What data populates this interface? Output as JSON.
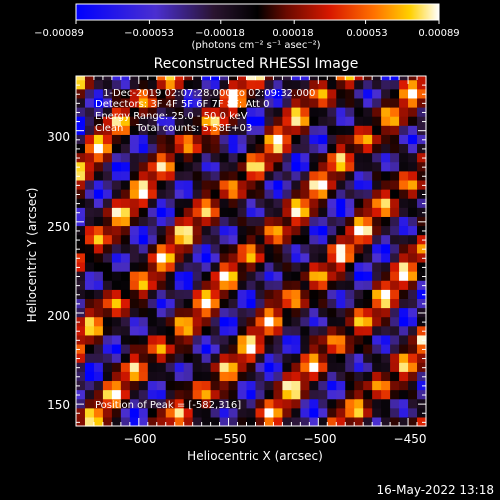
{
  "chart_data": {
    "type": "heatmap",
    "title": "Reconstructed RHESSI Image",
    "xlabel": "Heliocentric X (arcsec)",
    "ylabel": "Heliocentric Y (arcsec)",
    "xlim": [
      -635,
      -440
    ],
    "ylim": [
      138,
      330
    ],
    "x_ticks": [
      -600,
      -550,
      -500,
      -450
    ],
    "x_tick_labels": [
      "−600",
      "−550",
      "−500",
      "−450"
    ],
    "y_ticks": [
      150,
      200,
      250,
      300
    ],
    "y_tick_labels": [
      "150",
      "200",
      "250",
      "300"
    ],
    "colorbar": {
      "range": [
        -0.00089,
        0.00089
      ],
      "ticks": [
        -0.00089,
        -0.00053,
        -0.00018,
        0.00018,
        0.00053,
        0.00089
      ],
      "tick_labels": [
        "−0.00089",
        "−0.00053",
        "−0.00018",
        "0.00018",
        "0.00053",
        "0.00089"
      ],
      "units_label": "(photons cm⁻² s⁻¹ asec⁻²)"
    },
    "annotations": [
      "1-Dec-2019 02:07:28.000 to 02:09:32.000",
      "Detectors: 3F 4F 5F 6F 7F 8F; Att 0",
      "Energy Range: 25.0 - 50.0 keV",
      "Clean    Total counts: 5.58E+03"
    ],
    "peak_label": "Position of Peak = [-582,316]",
    "peak": {
      "x": -582,
      "y": 316
    },
    "pattern": {
      "stripe_orientation": "diagonal, lower-left to upper-right",
      "blob_period_arcsec": 18,
      "stripe_period_arcsec": 34,
      "peak_value": 0.00089,
      "min_value": -0.00089
    }
  },
  "footer": {
    "timestamp": "16-May-2022 13:18"
  },
  "colors": {
    "background": "#000000",
    "foreground": "#ffffff",
    "colormap": [
      "#0000ff",
      "#3a2aa8",
      "#1a0d24",
      "#000000",
      "#7a0c00",
      "#d82000",
      "#ff6a00",
      "#ffc000",
      "#ffffff"
    ]
  }
}
